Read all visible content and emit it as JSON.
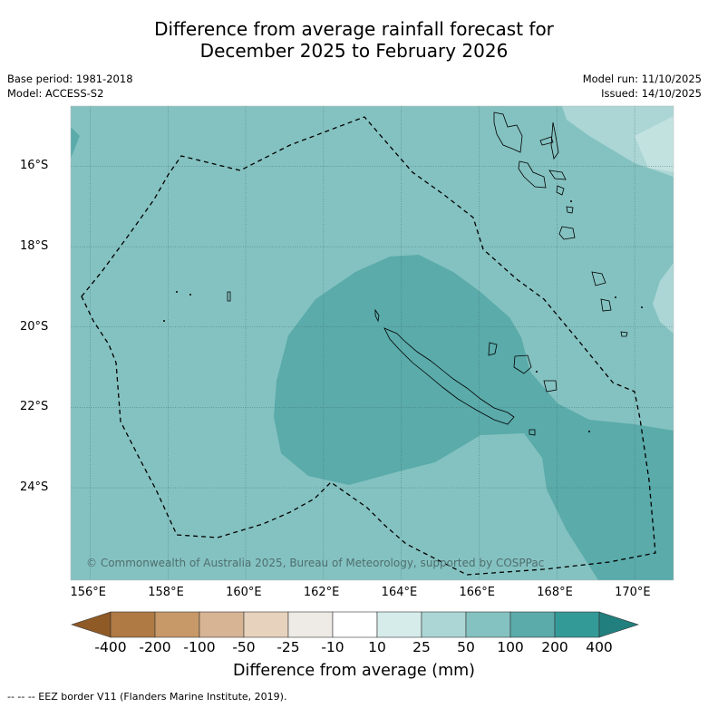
{
  "title_line1": "Difference from average rainfall forecast for",
  "title_line2": "December 2025 to February 2026",
  "base_period": "Base period: 1981-2018",
  "model": "Model: ACCESS-S2",
  "model_run": "Model run: 11/10/2025",
  "issued": "Issued: 14/10/2025",
  "copyright": "© Commonwealth of Australia 2025, Bureau of Meteorology, supported by COSPPac",
  "footnote": "--  --  -- EEZ border V11 (Flanders Marine Institute, 2019).",
  "lon_labels": [
    "156°E",
    "158°E",
    "160°E",
    "162°E",
    "164°E",
    "166°E",
    "168°E",
    "170°E"
  ],
  "lat_labels": [
    "16°S",
    "18°S",
    "20°S",
    "22°S",
    "24°S"
  ],
  "legend": {
    "title": "Difference from average (mm)",
    "bounds": [
      "-400",
      "-200",
      "-100",
      "-50",
      "-25",
      "-10",
      "10",
      "25",
      "50",
      "100",
      "200",
      "400"
    ],
    "colors": [
      "#8f5a25",
      "#b07a44",
      "#c79868",
      "#d6b494",
      "#e7d2be",
      "#eeebe6",
      "#ffffff",
      "#d6ecea",
      "#abd6d5",
      "#84c2c1",
      "#5aabaa",
      "#349a98",
      "#217f7d"
    ]
  },
  "colors": {
    "class_10_25": "#d6ecea",
    "class_25_50": "#abd6d5",
    "class_50_100": "#84c2c1",
    "class_100_200": "#5aabaa"
  }
}
